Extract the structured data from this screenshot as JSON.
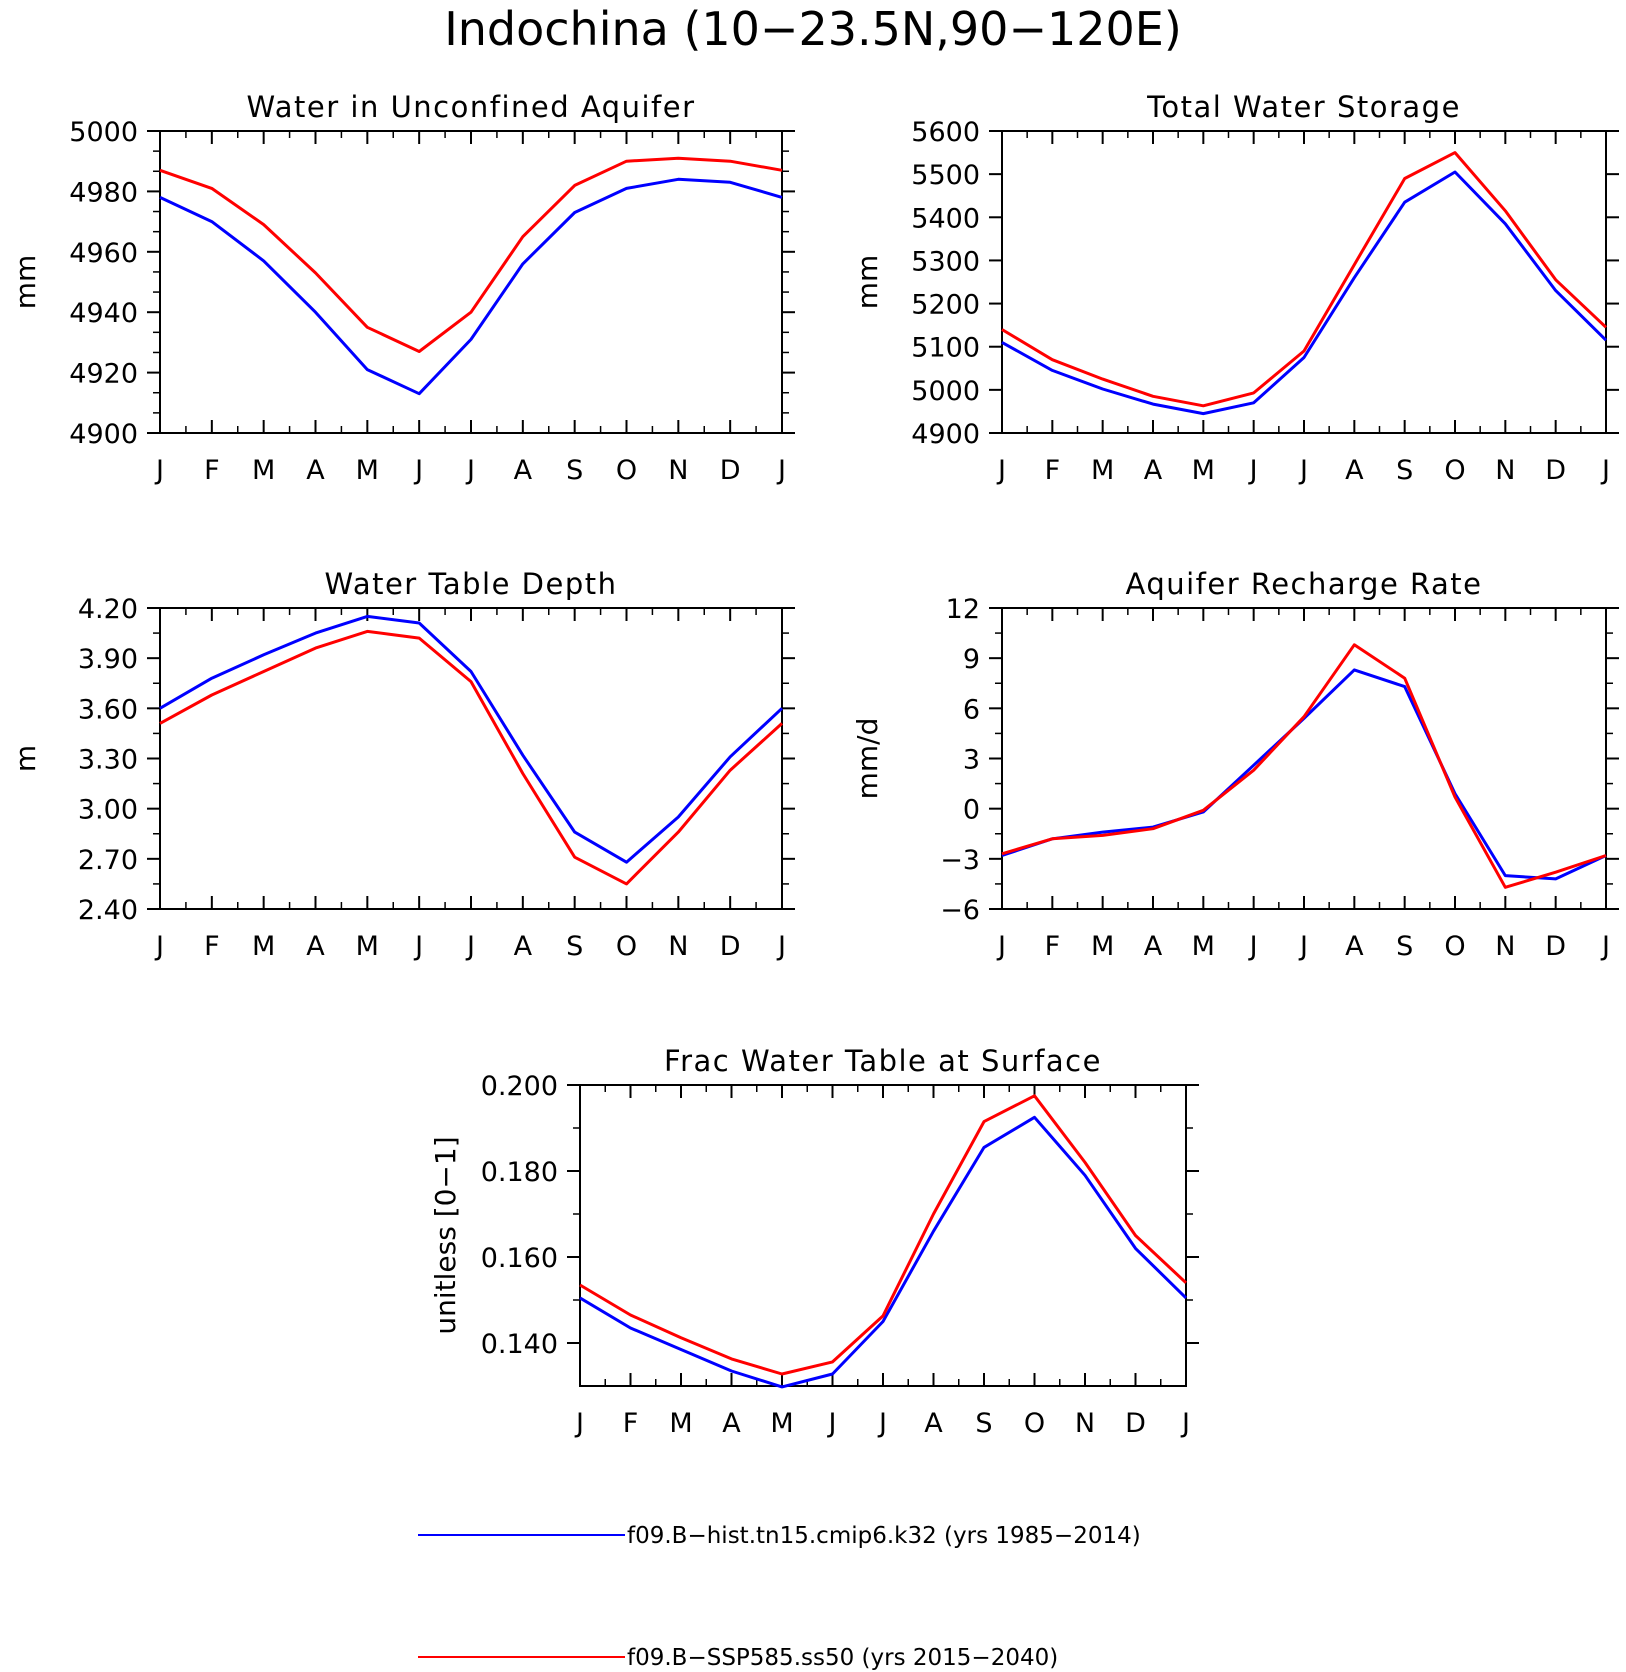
{
  "figure_title": "Indochina (10−23.5N,90−120E)",
  "months": [
    "J",
    "F",
    "M",
    "A",
    "M",
    "J",
    "J",
    "A",
    "S",
    "O",
    "N",
    "D",
    "J"
  ],
  "legend": [
    {
      "label": "f09.B−hist.tn15.cmip6.k32 (yrs 1985−2014)",
      "color": "#0000ff"
    },
    {
      "label": "f09.B−SSP585.ss50 (yrs 2015−2040)",
      "color": "#ff0000"
    }
  ],
  "chart_data": [
    {
      "type": "line",
      "title": "Water in Unconfined Aquifer",
      "ylabel": "mm",
      "ylim": [
        4900,
        5000
      ],
      "yticks": [
        "4900",
        "4920",
        "4940",
        "4960",
        "4980",
        "5000"
      ],
      "yminor": 2,
      "series": [
        {
          "values": [
            4978,
            4970,
            4957,
            4940,
            4921,
            4913,
            4931,
            4956,
            4973,
            4981,
            4984,
            4983,
            4978
          ]
        },
        {
          "values": [
            4987,
            4981,
            4969,
            4953,
            4935,
            4927,
            4940,
            4965,
            4982,
            4990,
            4991,
            4990,
            4987
          ]
        }
      ]
    },
    {
      "type": "line",
      "title": "Total Water Storage",
      "ylabel": "mm",
      "ylim": [
        4900,
        5600
      ],
      "yticks": [
        "4900",
        "5000",
        "5100",
        "5200",
        "5300",
        "5400",
        "5500",
        "5600"
      ],
      "yminor": 0,
      "series": [
        {
          "values": [
            5110,
            5045,
            5002,
            4967,
            4945,
            4970,
            5075,
            5260,
            5435,
            5505,
            5385,
            5230,
            5115
          ]
        },
        {
          "values": [
            5140,
            5070,
            5025,
            4985,
            4963,
            4993,
            5090,
            5290,
            5490,
            5550,
            5415,
            5255,
            5145
          ]
        }
      ]
    },
    {
      "type": "line",
      "title": "Water Table Depth",
      "ylabel": "m",
      "ylim": [
        2.4,
        4.2
      ],
      "yticks": [
        "2.40",
        "2.70",
        "3.00",
        "3.30",
        "3.60",
        "3.90",
        "4.20"
      ],
      "yminor": 1,
      "series": [
        {
          "values": [
            3.6,
            3.78,
            3.92,
            4.05,
            4.15,
            4.11,
            3.82,
            3.32,
            2.86,
            2.68,
            2.95,
            3.31,
            3.6
          ]
        },
        {
          "values": [
            3.51,
            3.68,
            3.82,
            3.96,
            4.06,
            4.02,
            3.76,
            3.21,
            2.71,
            2.55,
            2.86,
            3.23,
            3.51
          ]
        }
      ]
    },
    {
      "type": "line",
      "title": "Aquifer Recharge Rate",
      "ylabel": "mm/d",
      "ylim": [
        -6,
        12
      ],
      "yticks": [
        "−6",
        "−3",
        "0",
        "3",
        "6",
        "9",
        "12"
      ],
      "yminor": 1,
      "series": [
        {
          "values": [
            -2.8,
            -1.8,
            -1.4,
            -1.1,
            -0.2,
            2.6,
            5.4,
            8.3,
            7.3,
            0.9,
            -4.0,
            -4.2,
            -2.8
          ]
        },
        {
          "values": [
            -2.7,
            -1.8,
            -1.6,
            -1.2,
            -0.1,
            2.3,
            5.5,
            9.8,
            7.8,
            0.7,
            -4.7,
            -3.8,
            -2.8
          ]
        }
      ]
    },
    {
      "type": "line",
      "title": "Frac Water Table at Surface",
      "ylabel": "unitless [0−1]",
      "ylim": [
        0.13,
        0.2
      ],
      "yticks": [
        "0.140",
        "0.160",
        "0.180",
        "0.200"
      ],
      "ytick_values": [
        0.14,
        0.16,
        0.18,
        0.2
      ],
      "yminor": 1,
      "series": [
        {
          "values": [
            0.1505,
            0.1435,
            0.1385,
            0.1335,
            0.1298,
            0.1328,
            0.145,
            0.166,
            0.1855,
            0.1925,
            0.179,
            0.162,
            0.1505
          ]
        },
        {
          "values": [
            0.1535,
            0.1465,
            0.1412,
            0.1363,
            0.1328,
            0.1356,
            0.1463,
            0.17,
            0.1915,
            0.1975,
            0.182,
            0.165,
            0.154
          ]
        }
      ]
    }
  ]
}
